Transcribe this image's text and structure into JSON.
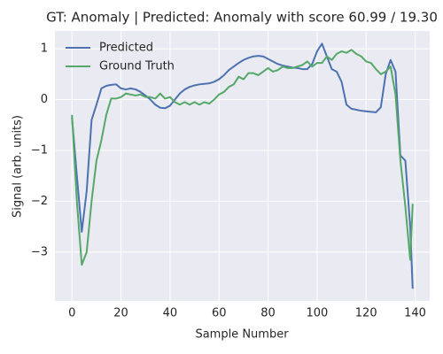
{
  "chart_data": {
    "type": "line",
    "title": "GT: Anomaly | Predicted: Anomaly with score 60.99 / 19.30",
    "xlabel": "Sample Number",
    "ylabel": "Signal (arb. units)",
    "x": [
      0,
      2,
      4,
      6,
      8,
      10,
      12,
      14,
      16,
      18,
      20,
      22,
      24,
      26,
      28,
      30,
      32,
      34,
      36,
      38,
      40,
      42,
      44,
      46,
      48,
      50,
      52,
      54,
      56,
      58,
      60,
      62,
      64,
      66,
      68,
      70,
      72,
      74,
      76,
      78,
      80,
      82,
      84,
      86,
      88,
      90,
      92,
      94,
      96,
      98,
      100,
      102,
      104,
      106,
      108,
      110,
      112,
      114,
      116,
      118,
      120,
      122,
      124,
      126,
      128,
      130,
      132,
      134,
      136,
      138,
      139
    ],
    "series": [
      {
        "name": "Predicted",
        "color": "#4c72b0",
        "values": [
          -0.35,
          -1.5,
          -2.6,
          -1.8,
          -0.4,
          -0.1,
          0.22,
          0.27,
          0.29,
          0.3,
          0.22,
          0.2,
          0.22,
          0.2,
          0.15,
          0.08,
          0.0,
          -0.1,
          -0.16,
          -0.17,
          -0.12,
          0.0,
          0.12,
          0.2,
          0.25,
          0.28,
          0.3,
          0.31,
          0.32,
          0.35,
          0.4,
          0.48,
          0.58,
          0.65,
          0.72,
          0.78,
          0.82,
          0.85,
          0.86,
          0.85,
          0.8,
          0.75,
          0.7,
          0.67,
          0.65,
          0.63,
          0.62,
          0.6,
          0.6,
          0.7,
          0.95,
          1.1,
          0.85,
          0.6,
          0.55,
          0.35,
          -0.1,
          -0.18,
          -0.2,
          -0.22,
          -0.23,
          -0.24,
          -0.25,
          -0.15,
          0.5,
          0.78,
          0.55,
          -1.1,
          -1.2,
          -2.5,
          -3.72
        ]
      },
      {
        "name": "Ground Truth",
        "color": "#55a868",
        "values": [
          -0.3,
          -2.0,
          -3.25,
          -3.0,
          -2.0,
          -1.2,
          -0.8,
          -0.3,
          0.02,
          0.02,
          0.05,
          0.12,
          0.1,
          0.08,
          0.1,
          0.05,
          0.05,
          0.02,
          0.12,
          0.02,
          0.05,
          -0.05,
          -0.1,
          -0.05,
          -0.1,
          -0.05,
          -0.1,
          -0.05,
          -0.08,
          0.0,
          0.1,
          0.15,
          0.25,
          0.3,
          0.45,
          0.4,
          0.52,
          0.52,
          0.48,
          0.55,
          0.62,
          0.55,
          0.58,
          0.65,
          0.62,
          0.62,
          0.65,
          0.68,
          0.75,
          0.65,
          0.72,
          0.72,
          0.85,
          0.78,
          0.9,
          0.95,
          0.92,
          0.98,
          0.9,
          0.85,
          0.75,
          0.72,
          0.6,
          0.5,
          0.55,
          0.65,
          0.1,
          -1.2,
          -2.1,
          -3.15,
          -2.05
        ]
      }
    ],
    "xlim": [
      -6.95,
      145.95
    ],
    "xticks": [
      0,
      20,
      40,
      60,
      80,
      100,
      120,
      140
    ],
    "ylim": [
      -3.96,
      1.35
    ],
    "yticks": [
      {
        "value": -3,
        "label": "−3"
      },
      {
        "value": -2,
        "label": "−2"
      },
      {
        "value": -1,
        "label": "−1"
      },
      0,
      1
    ],
    "grid": true,
    "legend": "upper left"
  }
}
